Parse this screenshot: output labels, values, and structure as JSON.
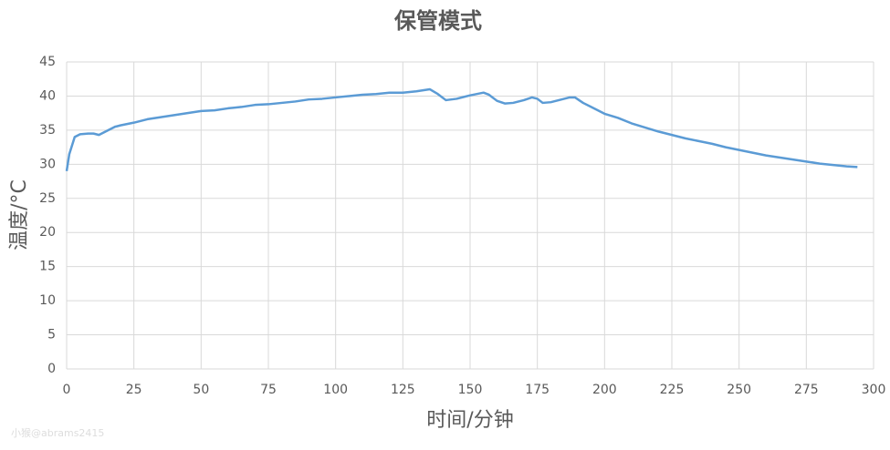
{
  "chart_data": {
    "type": "line",
    "title": "保管模式",
    "x_label": "时间/分钟",
    "y_label": "温度/°C",
    "watermark": "小猴@abrams2415",
    "x": [
      0,
      1,
      3,
      5,
      8,
      10,
      12,
      15,
      18,
      20,
      25,
      30,
      35,
      40,
      45,
      50,
      55,
      60,
      65,
      70,
      75,
      80,
      85,
      90,
      95,
      100,
      105,
      110,
      115,
      120,
      125,
      130,
      135,
      138,
      141,
      145,
      150,
      155,
      157,
      160,
      163,
      166,
      170,
      173,
      175,
      177,
      180,
      185,
      187,
      189,
      192,
      195,
      200,
      205,
      210,
      215,
      220,
      225,
      230,
      235,
      240,
      245,
      250,
      255,
      260,
      265,
      270,
      275,
      280,
      285,
      290,
      294
    ],
    "series": [
      {
        "name": "温度",
        "color": "#5b9bd5",
        "values": [
          29,
          31.5,
          34,
          34.4,
          34.5,
          34.5,
          34.3,
          34.9,
          35.5,
          35.7,
          36.1,
          36.6,
          36.9,
          37.2,
          37.5,
          37.8,
          37.9,
          38.2,
          38.4,
          38.7,
          38.8,
          39.0,
          39.2,
          39.5,
          39.6,
          39.8,
          40.0,
          40.2,
          40.3,
          40.5,
          40.5,
          40.7,
          41.0,
          40.3,
          39.4,
          39.6,
          40.1,
          40.5,
          40.2,
          39.3,
          38.9,
          39.0,
          39.4,
          39.8,
          39.6,
          39.0,
          39.1,
          39.6,
          39.8,
          39.8,
          39.0,
          38.4,
          37.4,
          36.8,
          36.0,
          35.4,
          34.8,
          34.3,
          33.8,
          33.4,
          33.0,
          32.5,
          32.1,
          31.7,
          31.3,
          31.0,
          30.7,
          30.4,
          30.1,
          29.9,
          29.7,
          29.6
        ]
      }
    ],
    "xlim": [
      0,
      300
    ],
    "xticks": [
      0,
      25,
      50,
      75,
      100,
      125,
      150,
      175,
      200,
      225,
      250,
      275,
      300
    ],
    "ylim": [
      0,
      45
    ],
    "yticks": [
      0,
      5,
      10,
      15,
      20,
      25,
      30,
      35,
      40,
      45
    ],
    "grid": true
  }
}
